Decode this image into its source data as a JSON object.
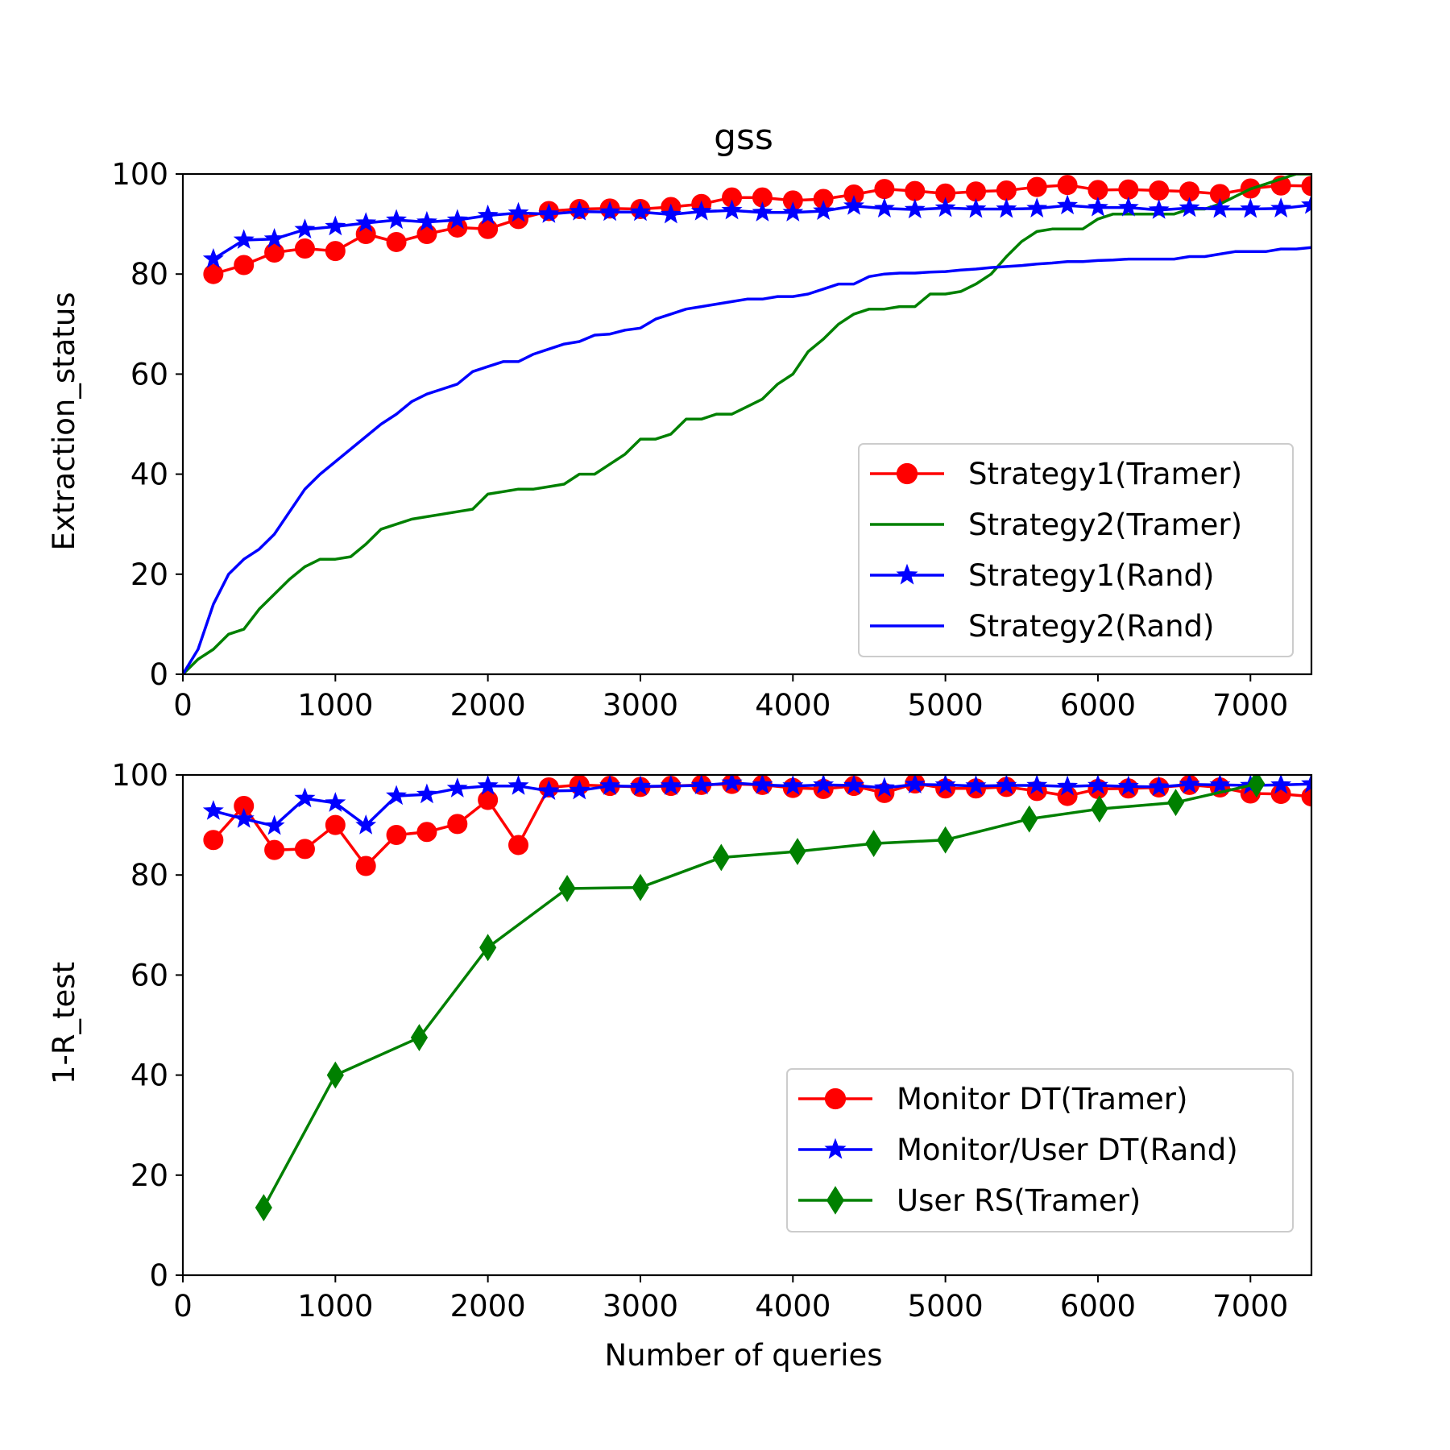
{
  "chart_data": [
    {
      "type": "line",
      "title": "gss",
      "xlabel": "",
      "ylabel": "Extraction_status",
      "xlim": [
        0,
        7400
      ],
      "ylim": [
        0,
        100
      ],
      "xticks": [
        0,
        1000,
        2000,
        3000,
        4000,
        5000,
        6000,
        7000
      ],
      "yticks": [
        0,
        20,
        40,
        60,
        80,
        100
      ],
      "legend_position": "lower-right",
      "series": [
        {
          "name": "Strategy1(Tramer)",
          "color": "#ff0000",
          "marker": "circle",
          "x": [
            200,
            400,
            600,
            800,
            1000,
            1200,
            1400,
            1600,
            1800,
            2000,
            2200,
            2400,
            2600,
            2800,
            3000,
            3200,
            3400,
            3600,
            3800,
            4000,
            4200,
            4400,
            4600,
            4800,
            5000,
            5200,
            5400,
            5600,
            5800,
            6000,
            6200,
            6400,
            6600,
            6800,
            7000,
            7200,
            7400
          ],
          "y": [
            80,
            81.8,
            84.3,
            85.1,
            84.6,
            88,
            86.4,
            88,
            89.3,
            89,
            91,
            92.6,
            93,
            93.1,
            93,
            93.4,
            94,
            95.3,
            95.3,
            94.7,
            95,
            95.9,
            97,
            96.6,
            96.1,
            96.5,
            96.7,
            97.4,
            97.8,
            96.8,
            96.9,
            96.7,
            96.5,
            96,
            97.1,
            97.7,
            97.6
          ]
        },
        {
          "name": "Strategy2(Tramer)",
          "color": "#008000",
          "marker": "none",
          "x": [
            0,
            100,
            200,
            300,
            400,
            500,
            600,
            700,
            800,
            900,
            1000,
            1100,
            1200,
            1300,
            1400,
            1500,
            1600,
            1700,
            1800,
            1900,
            2000,
            2100,
            2200,
            2300,
            2400,
            2500,
            2600,
            2700,
            2800,
            2900,
            3000,
            3100,
            3200,
            3300,
            3400,
            3500,
            3600,
            3700,
            3800,
            3900,
            4000,
            4100,
            4200,
            4300,
            4400,
            4500,
            4600,
            4700,
            4800,
            4900,
            5000,
            5100,
            5200,
            5300,
            5400,
            5500,
            5600,
            5700,
            5800,
            5900,
            6000,
            6100,
            6200,
            6300,
            6400,
            6500,
            6600,
            6700,
            6800,
            6900,
            7000,
            7100,
            7200,
            7300,
            7400
          ],
          "y": [
            0,
            3,
            5,
            8,
            9,
            13,
            16,
            19,
            21.5,
            23,
            23,
            23.5,
            26,
            29,
            30,
            31,
            31.5,
            32,
            32.5,
            33,
            36,
            36.5,
            37,
            37,
            37.5,
            38,
            40,
            40,
            42,
            44,
            47,
            47,
            48,
            51,
            51,
            52,
            52,
            53.5,
            55,
            58,
            60,
            64.5,
            67,
            70,
            72,
            73,
            73,
            73.5,
            73.5,
            76,
            76,
            76.5,
            78,
            80,
            83.5,
            86.5,
            88.5,
            89,
            89,
            89,
            91,
            92,
            92,
            92,
            92,
            92,
            93,
            93,
            94,
            95.5,
            97,
            98,
            99,
            100,
            100
          ]
        },
        {
          "name": "Strategy1(Rand)",
          "color": "#0000ff",
          "marker": "star",
          "x": [
            200,
            400,
            600,
            800,
            1000,
            1200,
            1400,
            1600,
            1800,
            2000,
            2200,
            2400,
            2600,
            2800,
            3000,
            3200,
            3400,
            3600,
            3800,
            4000,
            4200,
            4400,
            4600,
            4800,
            5000,
            5200,
            5400,
            5600,
            5800,
            6000,
            6200,
            6400,
            6600,
            6800,
            7000,
            7200,
            7400
          ],
          "y": [
            83,
            86.8,
            87,
            88.9,
            89.5,
            90.2,
            90.8,
            90.4,
            90.8,
            91.7,
            92.2,
            92,
            92.5,
            92.4,
            92.4,
            91.9,
            92.5,
            92.7,
            92.3,
            92.3,
            92.6,
            93.6,
            93.1,
            92.9,
            93.2,
            93,
            93,
            93.1,
            93.7,
            93.3,
            93.3,
            92.8,
            93.2,
            93,
            93,
            93.1,
            93.8
          ]
        },
        {
          "name": "Strategy2(Rand)",
          "color": "#0000ff",
          "marker": "none",
          "x": [
            0,
            100,
            200,
            300,
            400,
            500,
            600,
            700,
            800,
            900,
            1000,
            1100,
            1200,
            1300,
            1400,
            1500,
            1600,
            1700,
            1800,
            1900,
            2000,
            2100,
            2200,
            2300,
            2400,
            2500,
            2600,
            2700,
            2800,
            2900,
            3000,
            3100,
            3200,
            3300,
            3400,
            3500,
            3600,
            3700,
            3800,
            3900,
            4000,
            4100,
            4200,
            4300,
            4400,
            4500,
            4600,
            4700,
            4800,
            4900,
            5000,
            5100,
            5200,
            5300,
            5400,
            5500,
            5600,
            5700,
            5800,
            5900,
            6000,
            6100,
            6200,
            6300,
            6400,
            6500,
            6600,
            6700,
            6800,
            6900,
            7000,
            7100,
            7200,
            7300,
            7400
          ],
          "y": [
            0,
            5,
            14,
            20,
            23,
            25,
            28,
            32.5,
            37,
            40,
            42.5,
            45,
            47.5,
            50,
            52,
            54.5,
            56,
            57,
            58,
            60.5,
            61.5,
            62.5,
            62.5,
            64,
            65,
            66,
            66.5,
            67.8,
            68,
            68.8,
            69.2,
            71,
            72,
            73,
            73.5,
            74,
            74.5,
            75,
            75,
            75.5,
            75.5,
            76,
            77,
            78,
            78,
            79.5,
            80,
            80.2,
            80.2,
            80.4,
            80.5,
            80.8,
            81,
            81.3,
            81.5,
            81.7,
            82,
            82.2,
            82.5,
            82.5,
            82.7,
            82.8,
            83,
            83,
            83,
            83,
            83.5,
            83.5,
            84,
            84.5,
            84.5,
            84.5,
            85,
            85,
            85.3
          ]
        }
      ]
    },
    {
      "type": "line",
      "title": "",
      "xlabel": "Number of queries",
      "ylabel": "1-R_test",
      "xlim": [
        0,
        7400
      ],
      "ylim": [
        0,
        100
      ],
      "xticks": [
        0,
        1000,
        2000,
        3000,
        4000,
        5000,
        6000,
        7000
      ],
      "yticks": [
        0,
        20,
        40,
        60,
        80,
        100
      ],
      "legend_position": "lower-right",
      "series": [
        {
          "name": "Monitor DT(Tramer)",
          "color": "#ff0000",
          "marker": "circle",
          "x": [
            200,
            400,
            600,
            800,
            1000,
            1200,
            1400,
            1600,
            1800,
            2000,
            2200,
            2400,
            2600,
            2800,
            3000,
            3200,
            3400,
            3600,
            3800,
            4000,
            4200,
            4400,
            4600,
            4800,
            5000,
            5200,
            5400,
            5600,
            5800,
            6000,
            6200,
            6400,
            6600,
            6800,
            7000,
            7200,
            7400
          ],
          "y": [
            87,
            93.8,
            85,
            85.2,
            90,
            81.8,
            88,
            88.6,
            90.2,
            95,
            86,
            97.5,
            98,
            97.8,
            97.6,
            97.8,
            98,
            98.2,
            98,
            97.4,
            97.2,
            97.8,
            96.4,
            98.3,
            97.3,
            97.3,
            97.6,
            96.8,
            95.8,
            97.2,
            97.3,
            97.5,
            98,
            97.5,
            96.3,
            96.2,
            95.7
          ]
        },
        {
          "name": "Monitor/User DT(Rand)",
          "color": "#0000ff",
          "marker": "star",
          "x": [
            200,
            400,
            600,
            800,
            1000,
            1200,
            1400,
            1600,
            1800,
            2000,
            2200,
            2400,
            2600,
            2800,
            3000,
            3200,
            3400,
            3600,
            3800,
            4000,
            4200,
            4400,
            4600,
            4800,
            5000,
            5200,
            5400,
            5600,
            5800,
            6000,
            6200,
            6400,
            6600,
            6800,
            7000,
            7200,
            7400
          ],
          "y": [
            92.8,
            91.2,
            89.8,
            95.3,
            94.4,
            89.9,
            95.8,
            96.1,
            97.3,
            97.8,
            97.8,
            96.8,
            96.9,
            97.8,
            97.7,
            97.8,
            97.9,
            98.4,
            98,
            97.8,
            98,
            97.9,
            97.4,
            98.1,
            98,
            97.8,
            97.9,
            97.9,
            97.7,
            97.9,
            97.7,
            97.6,
            98.1,
            98,
            97.9,
            98,
            98.2
          ]
        },
        {
          "name": "User RS(Tramer)",
          "color": "#008000",
          "marker": "diamond",
          "x": [
            530,
            1000,
            1550,
            2000,
            2520,
            3000,
            3530,
            4030,
            4530,
            5000,
            5550,
            6010,
            6510,
            7040
          ],
          "y": [
            13.5,
            40,
            47.5,
            65.5,
            77.3,
            77.5,
            83.5,
            84.7,
            86.3,
            87,
            91.2,
            93.2,
            94.5,
            98.2
          ]
        }
      ]
    }
  ]
}
